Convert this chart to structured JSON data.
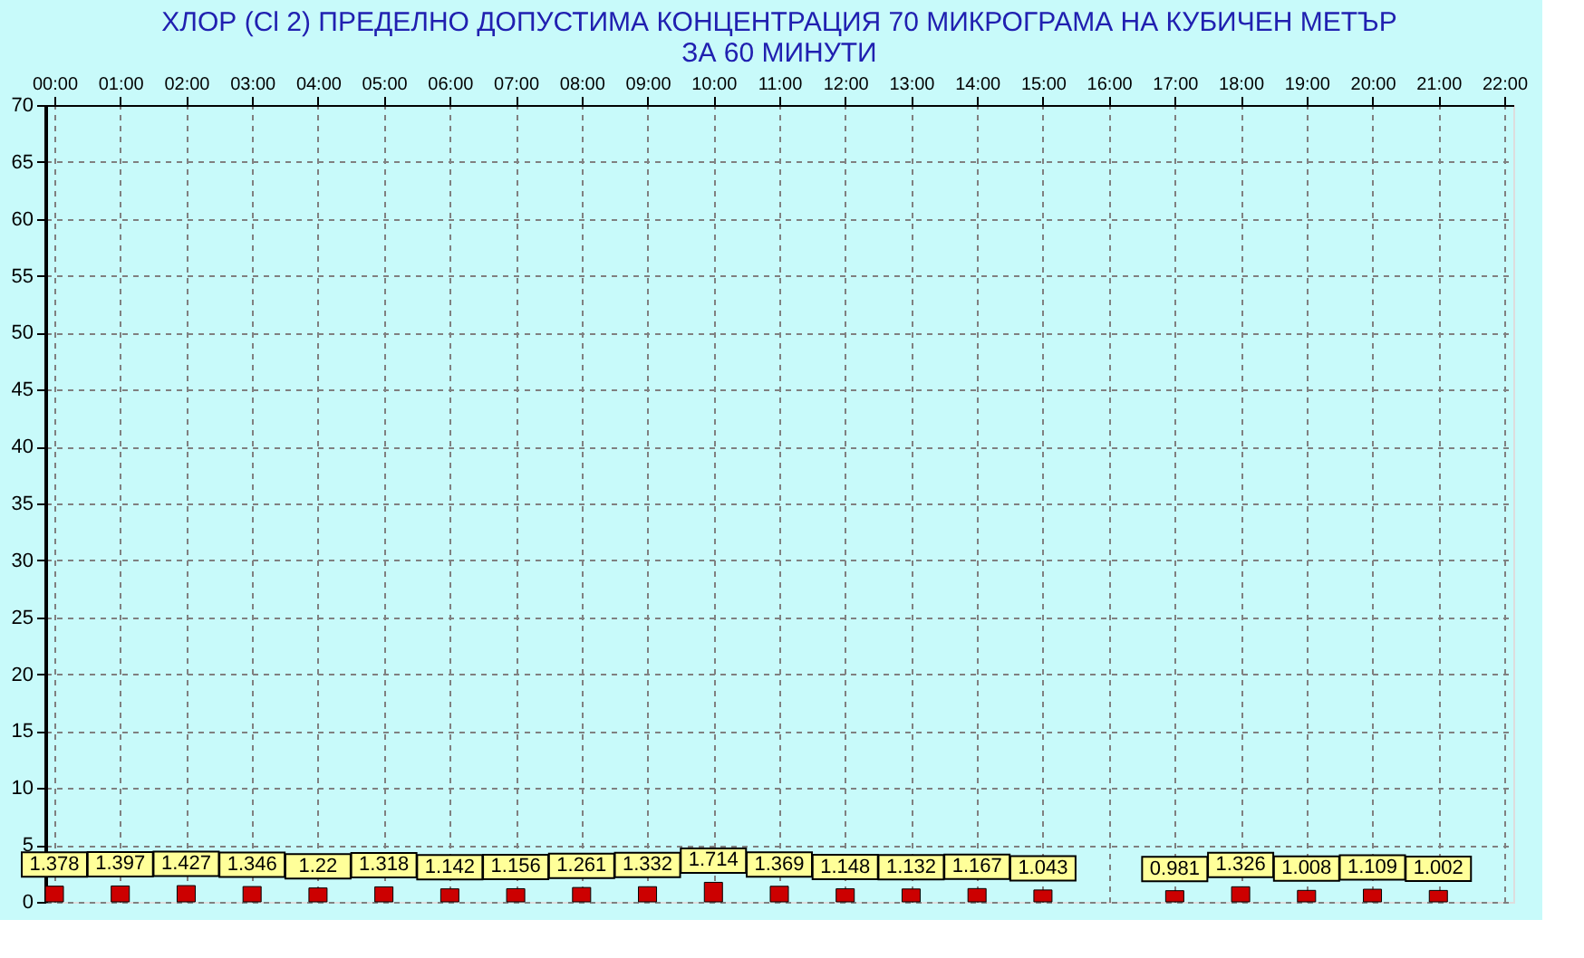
{
  "chart_data": {
    "type": "bar",
    "title": [
      "ХЛОР  (Cl 2)    ПРЕДЕЛНО ДОПУСТИМА КОНЦЕНТРАЦИЯ 70 МИКРОГРАМА  НА КУБИЧЕН МЕТЪР",
      "ЗА 60 МИНУТИ"
    ],
    "x": [
      0,
      1,
      2,
      3,
      4,
      5,
      6,
      7,
      8,
      9,
      10,
      11,
      12,
      13,
      14,
      15,
      16,
      17,
      18,
      19,
      20,
      21
    ],
    "series": [
      {
        "color": "#cc0000",
        "values": [
          1.378,
          1.397,
          1.427,
          1.346,
          1.22,
          1.318,
          1.142,
          1.156,
          1.261,
          1.332,
          1.714,
          1.369,
          1.148,
          1.132,
          1.167,
          1.043,
          null,
          0.981,
          1.326,
          1.008,
          1.109,
          1.002
        ]
      }
    ],
    "xlim": [
      0,
      22
    ],
    "xticks": [
      {
        "value": 0,
        "label": "00:00"
      },
      {
        "value": 1,
        "label": "01:00"
      },
      {
        "value": 2,
        "label": "02:00"
      },
      {
        "value": 3,
        "label": "03:00"
      },
      {
        "value": 4,
        "label": "04:00"
      },
      {
        "value": 5,
        "label": "05:00"
      },
      {
        "value": 6,
        "label": "06:00"
      },
      {
        "value": 7,
        "label": "07:00"
      },
      {
        "value": 8,
        "label": "08:00"
      },
      {
        "value": 9,
        "label": "09:00"
      },
      {
        "value": 10,
        "label": "10:00"
      },
      {
        "value": 11,
        "label": "11:00"
      },
      {
        "value": 12,
        "label": "12:00"
      },
      {
        "value": 13,
        "label": "13:00"
      },
      {
        "value": 14,
        "label": "14:00"
      },
      {
        "value": 15,
        "label": "15:00"
      },
      {
        "value": 16,
        "label": "16:00"
      },
      {
        "value": 17,
        "label": "17:00"
      },
      {
        "value": 18,
        "label": "18:00"
      },
      {
        "value": 19,
        "label": "19:00"
      },
      {
        "value": 20,
        "label": "20:00"
      },
      {
        "value": 21,
        "label": "21:00"
      },
      {
        "value": 22,
        "label": "22:00"
      }
    ],
    "ylim": [
      0,
      70
    ],
    "yticks": [
      0,
      5,
      10,
      15,
      20,
      25,
      30,
      35,
      40,
      45,
      50,
      55,
      60,
      65,
      70
    ],
    "grid": true,
    "data_labels": true
  }
}
